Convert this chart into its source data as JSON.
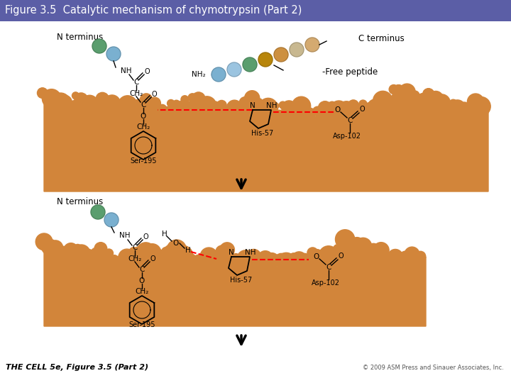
{
  "title": "Figure 3.5  Catalytic mechanism of chymotrypsin (Part 2)",
  "title_bg": "#5b5ea6",
  "title_color": "#ffffff",
  "title_fontsize": 10.5,
  "bg_color": "#ffffff",
  "enzyme_color": "#d2853a",
  "footer_left": "THE CELL 5e, Figure 3.5 (Part 2)",
  "footer_right": "© 2009 ASM Press and Sinauer Associates, Inc.",
  "panel1_n_label": "N terminus",
  "panel2_n_label": "N terminus",
  "c_terminus_label": "C terminus",
  "free_peptide_label": "-Free peptide",
  "ser195": "Ser-195",
  "his57": "His-57",
  "asp102": "Asp-102",
  "nh2": "NH₂",
  "bead_n1_colors": [
    "#5a9e6e",
    "#7ab0d0"
  ],
  "bead_n2_colors": [
    "#5a9e6e",
    "#7ab0d0"
  ],
  "bead_fp_colors": [
    "#7ab0d0",
    "#9bc4e0",
    "#5a9e6e",
    "#b8860b",
    "#cd9040",
    "#c8b890",
    "#d4aa70"
  ],
  "enzyme_dark": "#c07020",
  "enzyme_light": "#e09050"
}
